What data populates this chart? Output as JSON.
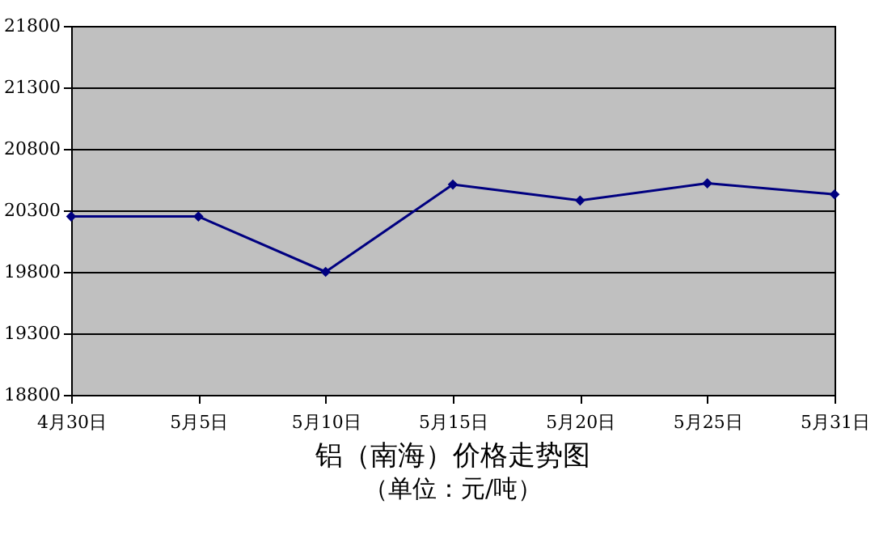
{
  "chart_data": {
    "type": "line",
    "title": "铝（南海）价格走势图",
    "subtitle": "（单位：元/吨）",
    "categories": [
      "4月30日",
      "5月5日",
      "5月10日",
      "5月15日",
      "5月20日",
      "5月25日",
      "5月31日"
    ],
    "series": [
      {
        "color": "#000080",
        "values": [
          20250,
          20250,
          19800,
          20510,
          20380,
          20520,
          20430
        ]
      }
    ],
    "ylim": [
      18800,
      21800
    ],
    "yticks": [
      18800,
      19300,
      19800,
      20300,
      20800,
      21300,
      21800
    ],
    "grid": "y",
    "legend": false,
    "marker": "diamond",
    "line_style": "solid"
  }
}
